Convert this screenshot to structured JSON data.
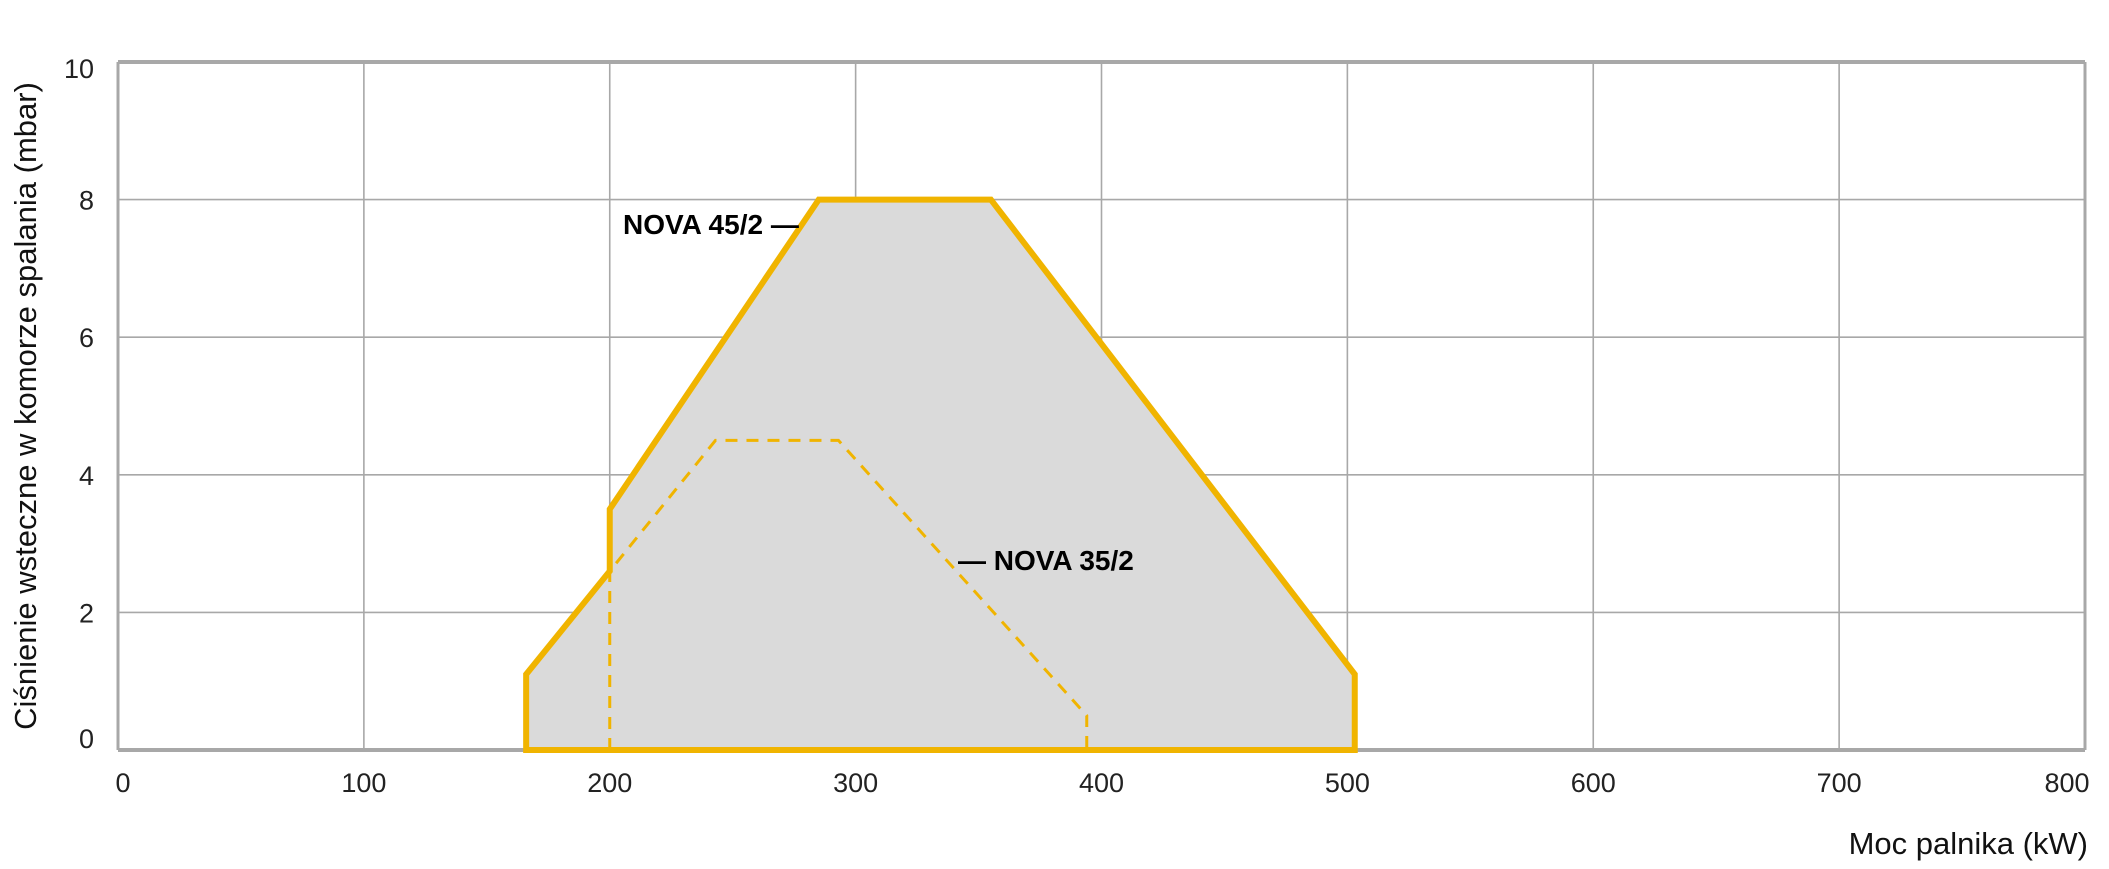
{
  "chart_data": {
    "type": "area",
    "xlabel": "Moc palnika (kW)",
    "ylabel": "Ciśnienie wsteczne w komorze spalania (mbar)",
    "xlim": [
      0,
      800
    ],
    "ylim": [
      0,
      10
    ],
    "xticks": [
      0,
      100,
      200,
      300,
      400,
      500,
      600,
      700,
      800
    ],
    "yticks": [
      0,
      2,
      4,
      6,
      8,
      10
    ],
    "grid": true,
    "colors": {
      "line": "#F0B400",
      "fill": "#DADADA",
      "grid": "#A8A8A8"
    },
    "series": [
      {
        "name": "NOVA 45/2",
        "style": "solid-filled",
        "label_text": "NOVA 45/2 —",
        "points": [
          [
            166,
            0
          ],
          [
            166,
            1.1
          ],
          [
            200,
            2.6
          ],
          [
            200,
            3.5
          ],
          [
            285,
            8
          ],
          [
            355,
            8
          ],
          [
            503,
            1.1
          ],
          [
            503,
            0
          ]
        ]
      },
      {
        "name": "NOVA 35/2",
        "style": "dashed",
        "label_text": "— NOVA 35/2",
        "points": [
          [
            200,
            0
          ],
          [
            200,
            2.6
          ],
          [
            243,
            4.5
          ],
          [
            293,
            4.5
          ],
          [
            394,
            0.5
          ],
          [
            394,
            0
          ]
        ]
      }
    ]
  }
}
